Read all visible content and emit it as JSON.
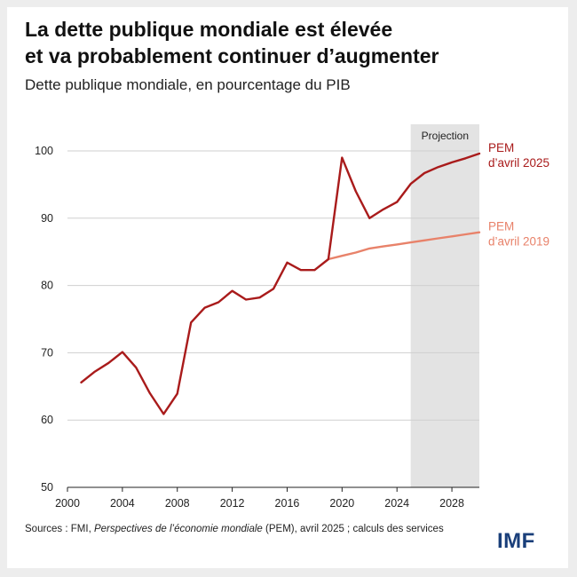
{
  "title_line1": "La dette publique mondiale est élevée",
  "title_line2": "et va probablement continuer d’augmenter",
  "subtitle": "Dette publique mondiale, en pourcentage du PIB",
  "source_prefix": "Sources : FMI, ",
  "source_italic": "Perspectives de l’économie mondiale",
  "source_suffix": " (PEM), avril 2025 ; calculs des services",
  "logo": "IMF",
  "colors": {
    "pem2025": "#a91b1b",
    "pem2019": "#e8826a",
    "projection_band": "#e3e3e3",
    "logo": "#1a3f7a"
  },
  "chart_data": {
    "type": "line",
    "xlim": [
      2000,
      2030
    ],
    "ylim": [
      50,
      100
    ],
    "x_ticks": [
      2000,
      2004,
      2008,
      2012,
      2016,
      2020,
      2024,
      2028
    ],
    "y_ticks": [
      50,
      60,
      70,
      80,
      90,
      100
    ],
    "projection": {
      "label": "Projection",
      "from": 2025,
      "to": 2030
    },
    "series": [
      {
        "name": "PEM d’avril 2025",
        "label_lines": [
          "PEM",
          "d’avril 2025"
        ],
        "color": "#a91b1b",
        "x": [
          2001,
          2002,
          2003,
          2004,
          2005,
          2006,
          2007,
          2008,
          2009,
          2010,
          2011,
          2012,
          2013,
          2014,
          2015,
          2016,
          2017,
          2018,
          2019,
          2020,
          2021,
          2022,
          2023,
          2024,
          2025,
          2026,
          2027,
          2028,
          2029,
          2030
        ],
        "y": [
          65.6,
          67.2,
          68.5,
          70.1,
          67.8,
          64.0,
          60.9,
          63.9,
          74.5,
          76.7,
          77.5,
          79.2,
          77.9,
          78.2,
          79.5,
          83.4,
          82.3,
          82.3,
          83.9,
          99.0,
          94.0,
          90.0,
          91.3,
          92.4,
          95.1,
          96.7,
          97.6,
          98.3,
          98.9,
          99.6
        ]
      },
      {
        "name": "PEM d’avril 2019",
        "label_lines": [
          "PEM",
          "d’avril 2019"
        ],
        "color": "#e8826a",
        "x": [
          2019,
          2020,
          2021,
          2022,
          2023,
          2024,
          2025,
          2026,
          2027,
          2028,
          2029,
          2030
        ],
        "y": [
          83.9,
          84.4,
          84.9,
          85.5,
          85.8,
          86.1,
          86.4,
          86.7,
          87.0,
          87.3,
          87.6,
          87.9
        ]
      }
    ]
  }
}
